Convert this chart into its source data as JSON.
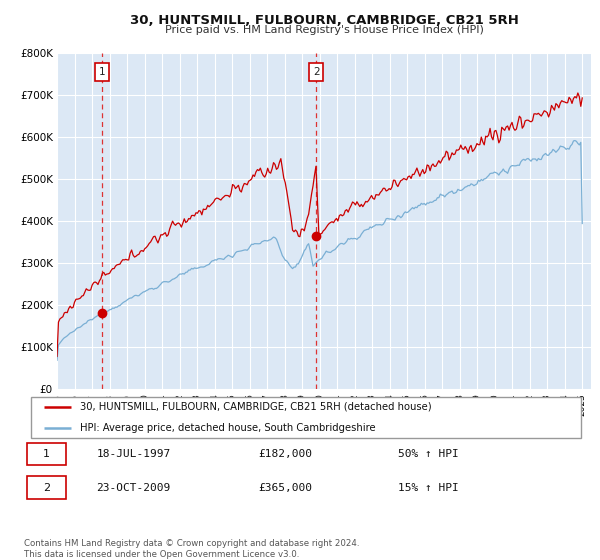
{
  "title": "30, HUNTSMILL, FULBOURN, CAMBRIDGE, CB21 5RH",
  "subtitle": "Price paid vs. HM Land Registry's House Price Index (HPI)",
  "fig_bg_color": "#ffffff",
  "plot_bg_color": "#dce8f5",
  "red_color": "#cc0000",
  "blue_color": "#7aafd4",
  "ylim": [
    0,
    800000
  ],
  "yticks": [
    0,
    100000,
    200000,
    300000,
    400000,
    500000,
    600000,
    700000,
    800000
  ],
  "ytick_labels": [
    "£0",
    "£100K",
    "£200K",
    "£300K",
    "£400K",
    "£500K",
    "£600K",
    "£700K",
    "£800K"
  ],
  "xmin": 1995.0,
  "xmax": 2025.5,
  "marker1_x": 1997.55,
  "marker1_y": 182000,
  "marker2_x": 2009.81,
  "marker2_y": 365000,
  "vline1_x": 1997.55,
  "vline2_x": 2009.81,
  "legend_line1": "30, HUNTSMILL, FULBOURN, CAMBRIDGE, CB21 5RH (detached house)",
  "legend_line2": "HPI: Average price, detached house, South Cambridgeshire",
  "table_rows": [
    [
      "1",
      "18-JUL-1997",
      "£182,000",
      "50% ↑ HPI"
    ],
    [
      "2",
      "23-OCT-2009",
      "£365,000",
      "15% ↑ HPI"
    ]
  ],
  "footer": "Contains HM Land Registry data © Crown copyright and database right 2024.\nThis data is licensed under the Open Government Licence v3.0."
}
